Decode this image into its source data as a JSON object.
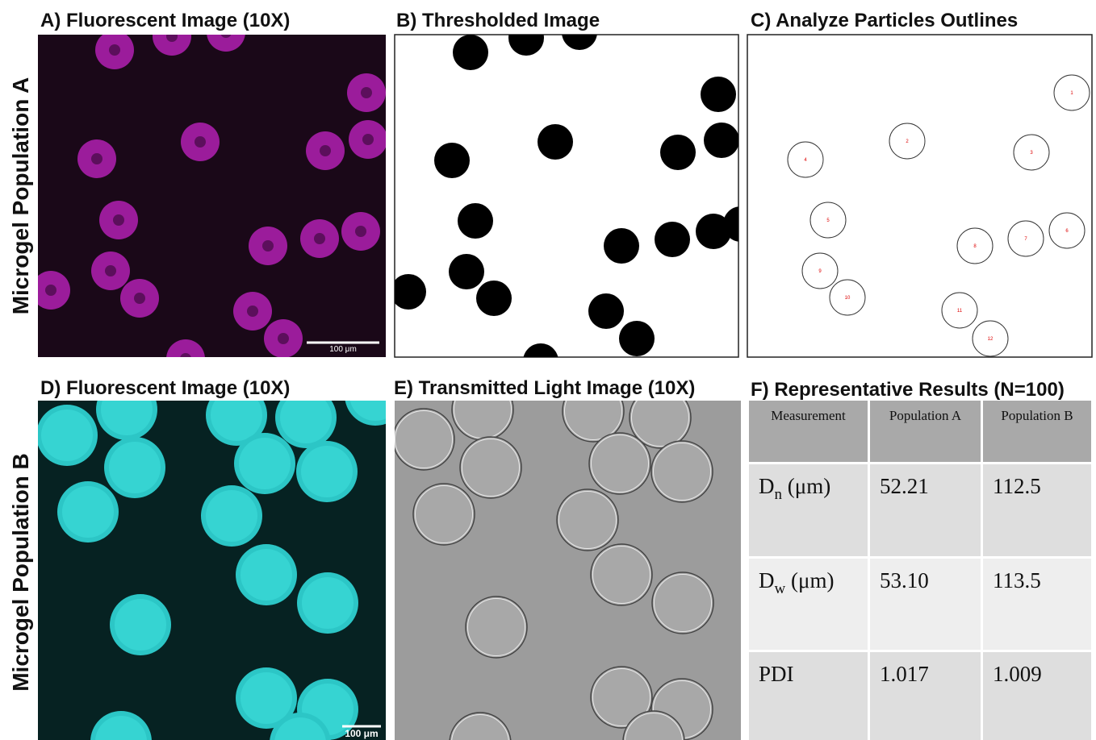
{
  "rows": [
    "Microgel Population A",
    "Microgel Population B"
  ],
  "panels": {
    "a": {
      "title": "A) Fluorescent Image (10X)",
      "scale_bar": "100 μm"
    },
    "b": {
      "title": "B) Thresholded Image"
    },
    "c": {
      "title": "C) Analyze Particles Outlines",
      "particles": [
        "1",
        "2",
        "3",
        "4",
        "5",
        "6",
        "7",
        "8",
        "9",
        "10",
        "11",
        "12"
      ]
    },
    "d": {
      "title": "D) Fluorescent Image (10X)",
      "scale_bar": "100 μm"
    },
    "e": {
      "title": "E) Transmitted Light Image (10X)"
    },
    "f": {
      "title": "F) Representative Results (N=100)",
      "table": {
        "header": [
          "Measurement",
          "Population A",
          "Population B"
        ],
        "rows": [
          [
            {
              "base": "D",
              "sub": "n",
              "unit": " (μm)"
            },
            "52.21",
            "112.5"
          ],
          [
            {
              "base": "D",
              "sub": "w",
              "unit": " (μm)"
            },
            "53.10",
            "113.5"
          ],
          [
            {
              "base": "PDI"
            },
            "1.017",
            "1.009"
          ]
        ]
      }
    }
  }
}
